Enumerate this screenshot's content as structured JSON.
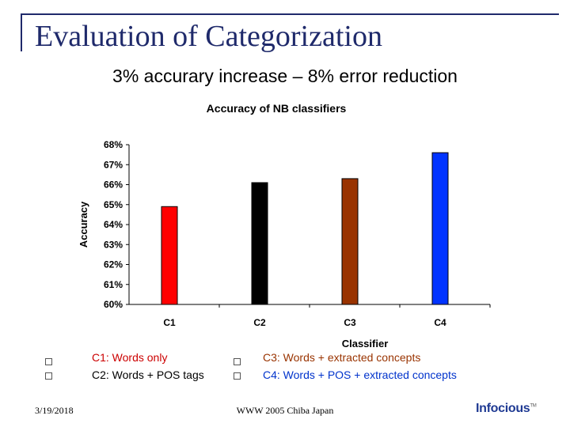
{
  "slide": {
    "title": "Evaluation of Categorization",
    "subtitle": "3% accurary increase – 8% error reduction"
  },
  "chart_data": {
    "type": "bar",
    "title": "Accuracy of NB classifiers",
    "xlabel": "Classifier",
    "ylabel": "Accuracy",
    "categories": [
      "C1",
      "C2",
      "C3",
      "C4"
    ],
    "values": [
      64.9,
      66.1,
      66.3,
      67.6
    ],
    "colors": [
      "#ff0000",
      "#000000",
      "#993300",
      "#0033ff"
    ],
    "ylim": [
      60,
      68
    ],
    "yticks": [
      "60%",
      "61%",
      "62%",
      "63%",
      "64%",
      "65%",
      "66%",
      "67%",
      "68%"
    ],
    "grid": false,
    "legend": "bottom"
  },
  "legend": [
    {
      "text": "C1: Words only",
      "color": "#cc0000"
    },
    {
      "text": "C2: Words + POS tags",
      "color": "#000000"
    },
    {
      "text": "C3: Words + extracted concepts",
      "color": "#993300"
    },
    {
      "text": "C4: Words + POS + extracted concepts",
      "color": "#0033cc"
    }
  ],
  "footer": {
    "date": "3/19/2018",
    "center": "WWW 2005 Chiba Japan",
    "logo": "Infocious",
    "logo_tm": "TM"
  }
}
